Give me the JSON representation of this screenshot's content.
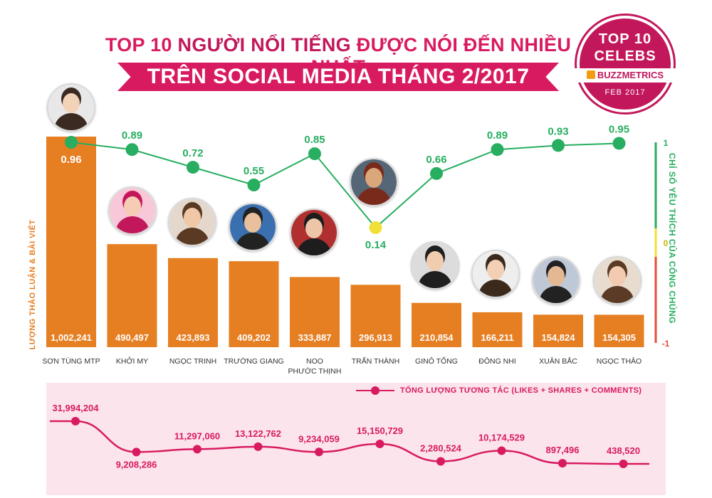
{
  "header": {
    "title_prefix": "TOP 10 ",
    "title_highlight": "NGƯỜI NỔI TIẾNG",
    "title_suffix": " ĐƯỢC NÓI ĐẾN NHIỀU NHẤT",
    "banner": "TRÊN SOCIAL MEDIA THÁNG 2/2017"
  },
  "badge": {
    "line1": "TOP 10",
    "line2": "CELEBS",
    "brand": "BUZZMETRICS",
    "date": "FEB 2017"
  },
  "colors": {
    "bar": "#e67e22",
    "title": "#d81b60",
    "positive": "#27ae60",
    "neutral": "#f1e03a",
    "interaction": "#d81b60",
    "panel": "#fce4ec"
  },
  "chart_data": [
    {
      "type": "bar",
      "categories": [
        [
          "SƠN TÙNG MTP"
        ],
        [
          "KHỞI MY"
        ],
        [
          "NGỌC TRINH"
        ],
        [
          "TRƯỜNG GIANG"
        ],
        [
          "NOO",
          "PHƯỚC THỊNH"
        ],
        [
          "TRẤN THÀNH"
        ],
        [
          "GINÔ TỐNG"
        ],
        [
          "ĐÔNG NHI"
        ],
        [
          "XUÂN BẮC"
        ],
        [
          "NGỌC THẢO"
        ]
      ],
      "values": [
        1002241,
        490497,
        423893,
        409202,
        333887,
        296913,
        210854,
        166211,
        154824,
        154305
      ],
      "value_labels": [
        "1,002,241",
        "490,497",
        "423,893",
        "409,202",
        "333,887",
        "296,913",
        "210,854",
        "166,211",
        "154,824",
        "154,305"
      ],
      "ylabel": "LƯỢNG THẢO LUẬN & BÀI VIẾT",
      "ylim": [
        0,
        1002241
      ]
    },
    {
      "type": "line",
      "values": [
        0.96,
        0.89,
        0.72,
        0.55,
        0.85,
        0.14,
        0.66,
        0.89,
        0.93,
        0.95
      ],
      "value_labels": [
        "0.96",
        "0.89",
        "0.72",
        "0.55",
        "0.85",
        "0.14",
        "0.66",
        "0.89",
        "0.93",
        "0.95"
      ],
      "ylabel": "CHỈ SỐ YÊU THÍCH CỦA CÔNG CHÚNG",
      "ylim": [
        -1,
        1
      ],
      "yticks": [
        "1",
        "0",
        "-1"
      ]
    },
    {
      "type": "line",
      "legend": "TỔNG LƯỢNG TƯƠNG TÁC (LIKES + SHARES + COMMENTS)",
      "values": [
        31994204,
        9208286,
        11297060,
        13122762,
        9234059,
        15150729,
        2280524,
        10174529,
        897496,
        438520
      ],
      "value_labels": [
        "31,994,204",
        "9,208,286",
        "11,297,060",
        "13,122,762",
        "9,234,059",
        "15,150,729",
        "2,280,524",
        "10,174,529",
        "897,496",
        "438,520"
      ]
    }
  ]
}
